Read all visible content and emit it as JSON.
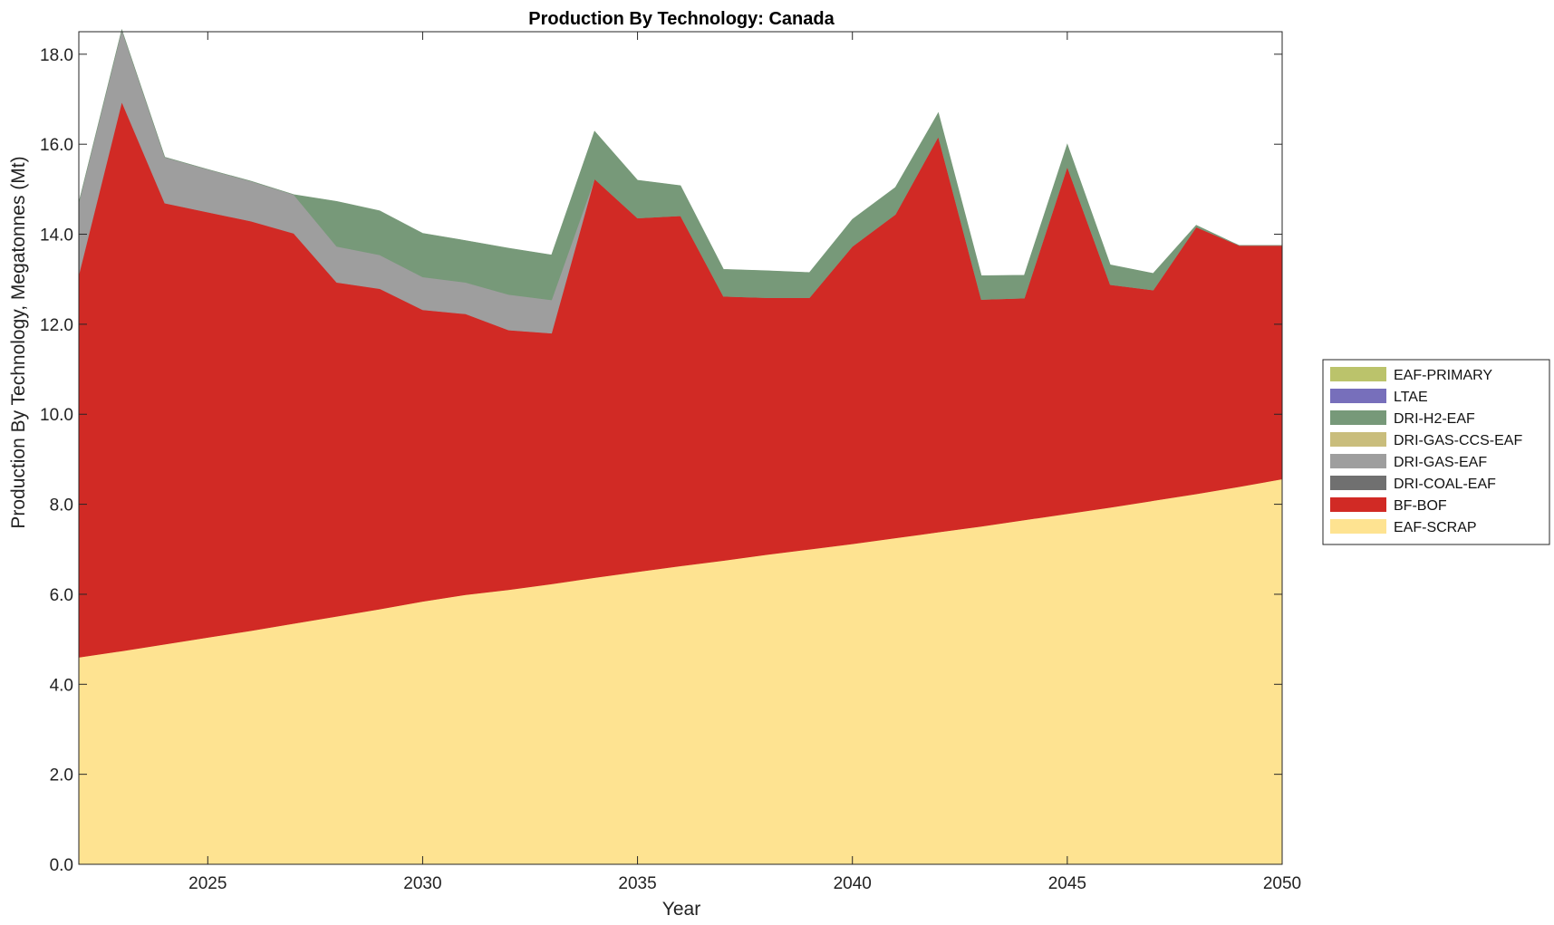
{
  "chart_data": {
    "type": "area",
    "stacked": true,
    "title": "Production By Technology: Canada",
    "xlabel": "Year",
    "ylabel": "Production By Technology, Megatonnes (Mt)",
    "xlim": [
      2022,
      2050
    ],
    "ylim": [
      0,
      18.5
    ],
    "xticks": [
      "2025",
      "2030",
      "2035",
      "2040",
      "2045",
      "2050"
    ],
    "yticks": [
      "0.0",
      "2.0",
      "4.0",
      "6.0",
      "8.0",
      "10.0",
      "12.0",
      "14.0",
      "16.0",
      "18.0"
    ],
    "legend_position": "right",
    "grid": false,
    "x": [
      2022,
      2023,
      2024,
      2025,
      2026,
      2027,
      2028,
      2029,
      2030,
      2031,
      2032,
      2033,
      2034,
      2035,
      2036,
      2037,
      2038,
      2039,
      2040,
      2041,
      2042,
      2043,
      2044,
      2045,
      2046,
      2047,
      2048,
      2049,
      2050
    ],
    "series": [
      {
        "name": "EAF-SCRAP",
        "color": "#fee391",
        "values": [
          4.6,
          4.74,
          4.89,
          5.04,
          5.19,
          5.35,
          5.51,
          5.67,
          5.84,
          5.99,
          6.1,
          6.23,
          6.37,
          6.5,
          6.63,
          6.75,
          6.88,
          7.0,
          7.12,
          7.25,
          7.38,
          7.51,
          7.65,
          7.79,
          7.93,
          8.08,
          8.23,
          8.39,
          8.56
        ]
      },
      {
        "name": "BF-BOF",
        "color": "#d12a25",
        "values": [
          8.5,
          12.2,
          9.8,
          9.45,
          9.1,
          8.67,
          7.42,
          7.12,
          6.48,
          6.24,
          5.77,
          5.57,
          8.86,
          7.86,
          7.78,
          5.87,
          5.71,
          5.59,
          6.61,
          7.19,
          8.79,
          5.04,
          4.93,
          7.71,
          4.95,
          4.68,
          5.93,
          5.36,
          5.19
        ]
      },
      {
        "name": "DRI-COAL-EAF",
        "color": "#707070",
        "values": [
          0,
          0,
          0,
          0,
          0,
          0,
          0,
          0,
          0,
          0,
          0,
          0,
          0,
          0,
          0,
          0,
          0,
          0,
          0,
          0,
          0,
          0,
          0,
          0,
          0,
          0,
          0,
          0,
          0
        ]
      },
      {
        "name": "DRI-GAS-EAF",
        "color": "#9e9e9e",
        "values": [
          1.6,
          1.6,
          1.02,
          0.95,
          0.89,
          0.86,
          0.8,
          0.75,
          0.73,
          0.7,
          0.79,
          0.74,
          0,
          0,
          0,
          0,
          0,
          0,
          0,
          0,
          0,
          0,
          0,
          0,
          0,
          0,
          0,
          0,
          0
        ]
      },
      {
        "name": "DRI-GAS-CCS-EAF",
        "color": "#c9bd7c",
        "values": [
          0,
          0,
          0,
          0,
          0,
          0,
          0,
          0,
          0,
          0,
          0,
          0,
          0,
          0,
          0,
          0,
          0,
          0,
          0,
          0,
          0,
          0,
          0,
          0,
          0,
          0,
          0,
          0,
          0
        ]
      },
      {
        "name": "DRI-H2-EAF",
        "color": "#779979",
        "values": [
          0,
          0,
          0,
          0,
          0,
          0,
          1.0,
          0.98,
          0.97,
          0.93,
          1.03,
          1.0,
          1.06,
          0.84,
          0.67,
          0.6,
          0.6,
          0.56,
          0.6,
          0.6,
          0.53,
          0.53,
          0.51,
          0.5,
          0.44,
          0.37,
          0.04,
          0,
          0
        ]
      },
      {
        "name": "LTAE",
        "color": "#776fbb",
        "values": [
          0,
          0,
          0,
          0,
          0,
          0,
          0,
          0,
          0,
          0,
          0,
          0,
          0,
          0,
          0,
          0,
          0,
          0,
          0,
          0,
          0,
          0,
          0,
          0,
          0,
          0,
          0,
          0,
          0
        ]
      },
      {
        "name": "EAF-PRIMARY",
        "color": "#bbc36b",
        "values": [
          0,
          0,
          0,
          0,
          0,
          0,
          0,
          0,
          0,
          0,
          0,
          0,
          0,
          0,
          0,
          0,
          0,
          0,
          0,
          0,
          0,
          0,
          0,
          0,
          0,
          0,
          0,
          0,
          0
        ]
      }
    ],
    "legend_order": [
      "EAF-PRIMARY",
      "LTAE",
      "DRI-H2-EAF",
      "DRI-GAS-CCS-EAF",
      "DRI-GAS-EAF",
      "DRI-COAL-EAF",
      "BF-BOF",
      "EAF-SCRAP"
    ]
  }
}
